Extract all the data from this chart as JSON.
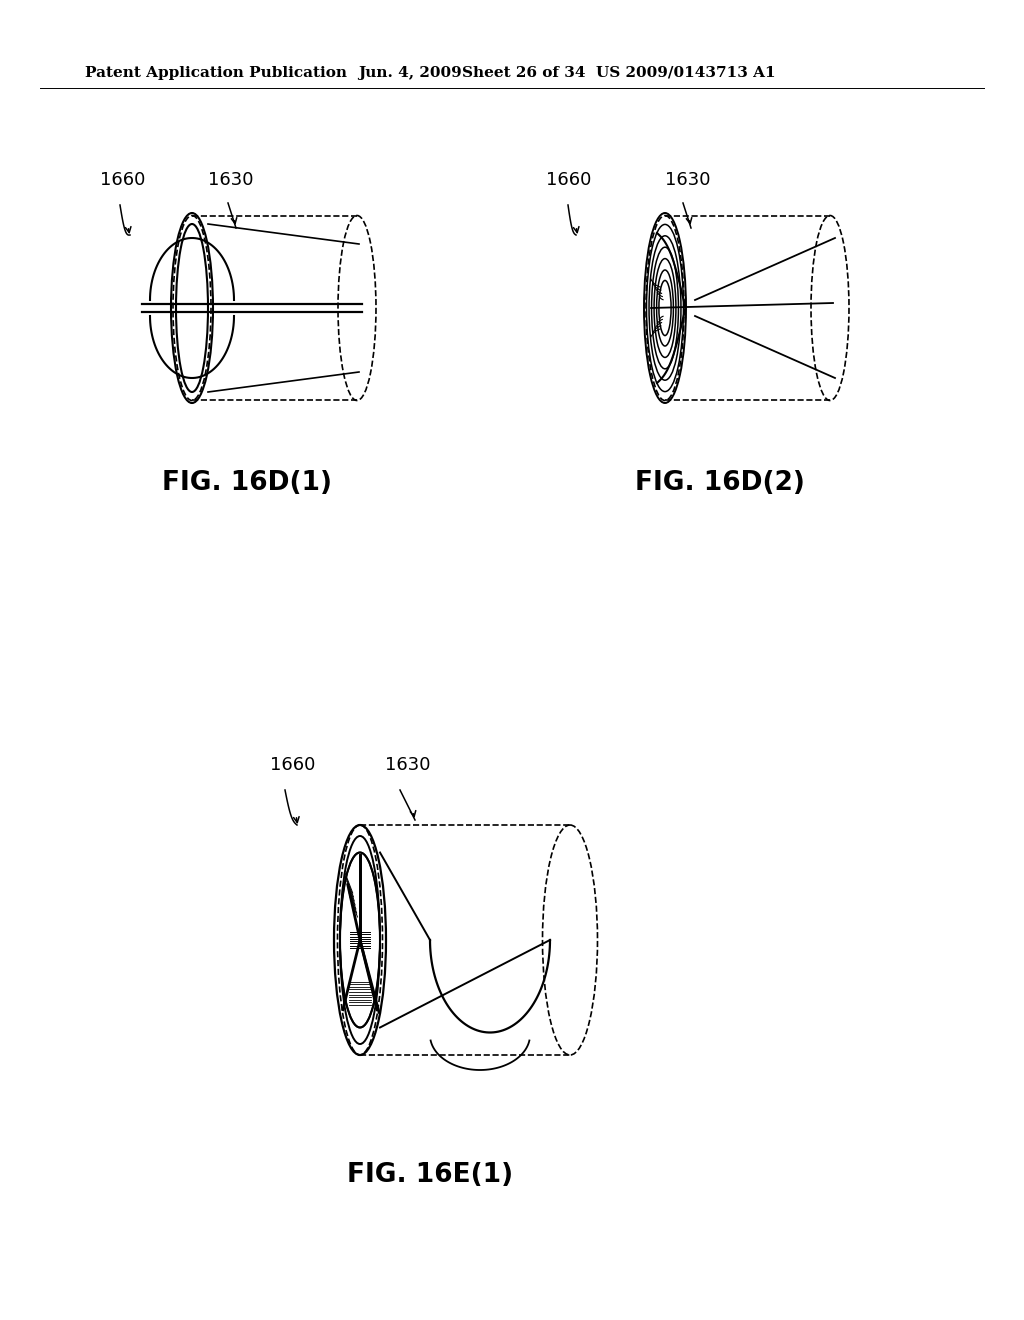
{
  "bg_color": "#ffffff",
  "line_color": "#000000",
  "header_text": "Patent Application Publication",
  "header_date": "Jun. 4, 2009",
  "header_sheet": "Sheet 26 of 34",
  "header_patent": "US 2009/0143713 A1",
  "fig1_label": "FIG. 16D(1)",
  "fig2_label": "FIG. 16D(2)",
  "fig3_label": "FIG. 16E(1)",
  "label_1660": "1660",
  "label_1630": "1630",
  "font_size_header": 11,
  "font_size_fig": 19,
  "font_size_label": 13
}
